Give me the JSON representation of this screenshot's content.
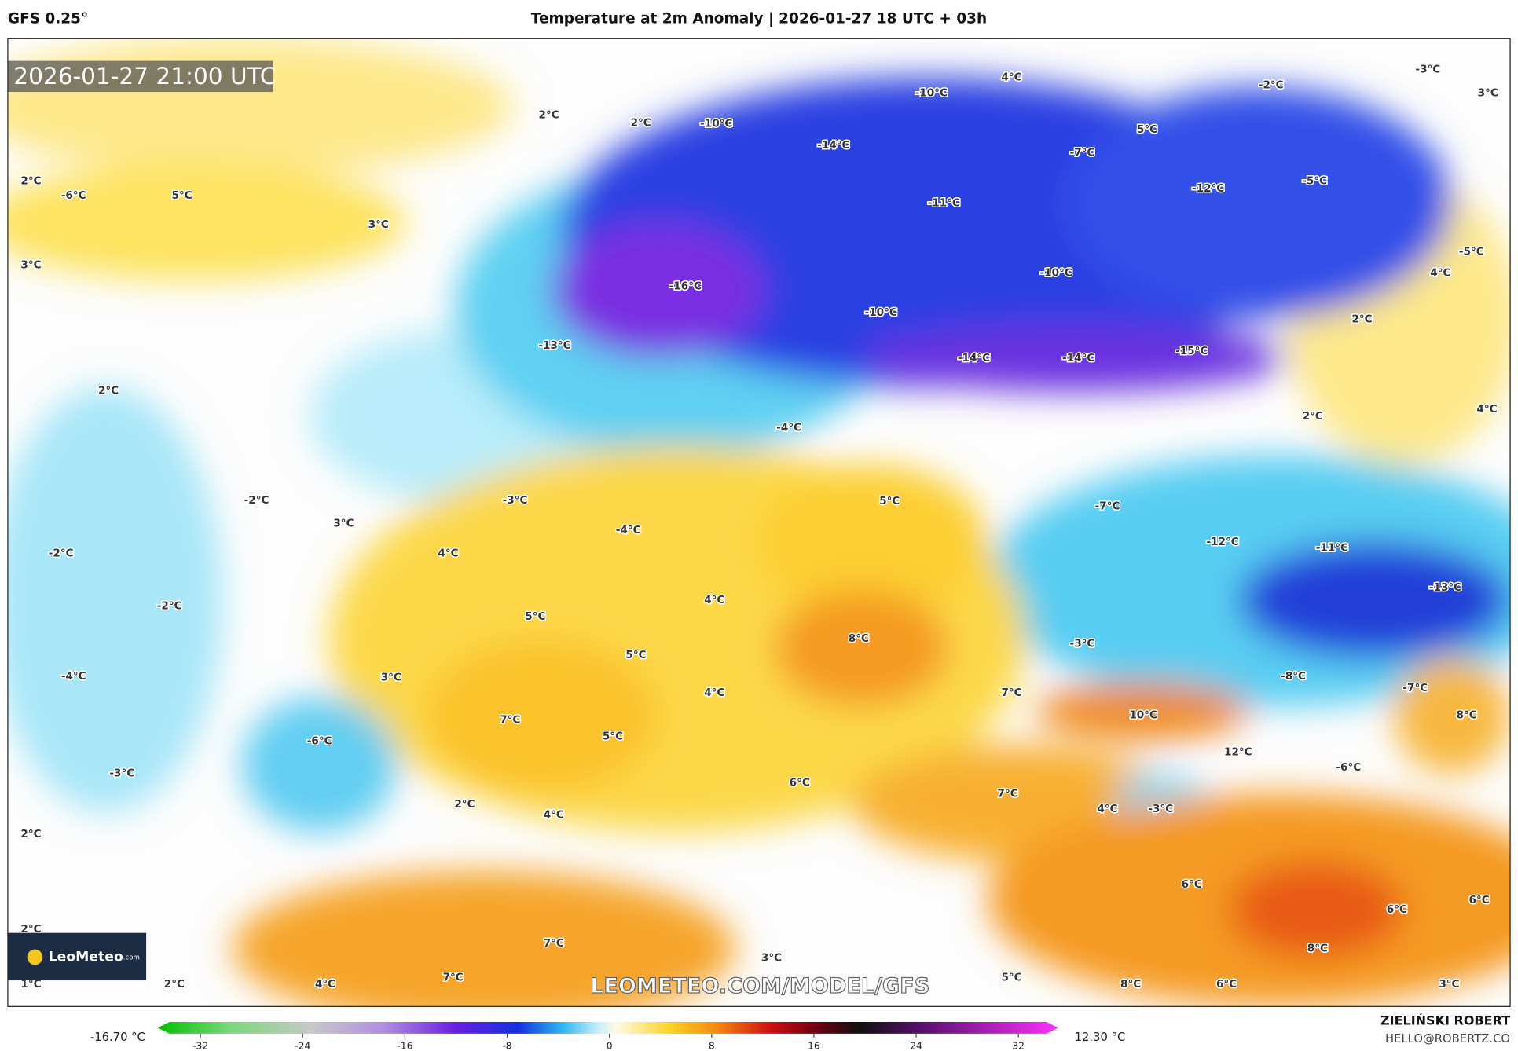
{
  "header": {
    "model": "GFS 0.25°",
    "title": "Temperature at 2m Anomaly | 2026-01-27 18 UTC + 03h"
  },
  "map": {
    "timestamp": "2026-01-27 21:00 UTC",
    "labels": [
      "2°C",
      "2°C",
      "-10°C",
      "-10°C",
      "4°C",
      "-2°C",
      "-3°C",
      "3°C",
      "2°C",
      "-6°C",
      "5°C",
      "3°C",
      "-14°C",
      "-7°C",
      "5°C",
      "-12°C",
      "-5°C",
      "-11°C",
      "3°C",
      "-16°C",
      "-10°C",
      "4°C",
      "-5°C",
      "2°C",
      "-13°C",
      "-10°C",
      "-14°C",
      "-14°C",
      "-15°C",
      "2°C",
      "2°C",
      "4°C",
      "-4°C",
      "5°C",
      "-7°C",
      "-2°C",
      "-3°C",
      "3°C",
      "-4°C",
      "-12°C",
      "-11°C",
      "-2°C",
      "4°C",
      "-13°C",
      "-2°C",
      "4°C",
      "5°C",
      "8°C",
      "-3°C",
      "5°C",
      "-4°C",
      "3°C",
      "-8°C",
      "-7°C",
      "4°C",
      "7°C",
      "10°C",
      "8°C",
      "7°C",
      "-6°C",
      "5°C",
      "12°C",
      "-3°C",
      "-6°C",
      "6°C",
      "2°C",
      "7°C",
      "4°C",
      "-3°C",
      "4°C",
      "2°C",
      "6°C",
      "6°C",
      "6°C",
      "2°C",
      "7°C",
      "8°C",
      "3°C",
      "7°C",
      "1°C",
      "2°C",
      "4°C",
      "5°C",
      "8°C",
      "6°C",
      "3°C"
    ],
    "watermark": "LEOMETEO.COM/MODEL/GFS",
    "logo": {
      "name": "LeoMeteo",
      "suffix": ".com"
    }
  },
  "colorbar": {
    "min_label": "-16.70 °C",
    "max_label": "12.30 °C",
    "ticks": [
      -32,
      -24,
      -16,
      -8,
      0,
      8,
      16,
      24,
      32
    ]
  },
  "credits": {
    "author": "ZIELIŃSKI ROBERT",
    "email": "HELLO@ROBERTZ.CO"
  }
}
